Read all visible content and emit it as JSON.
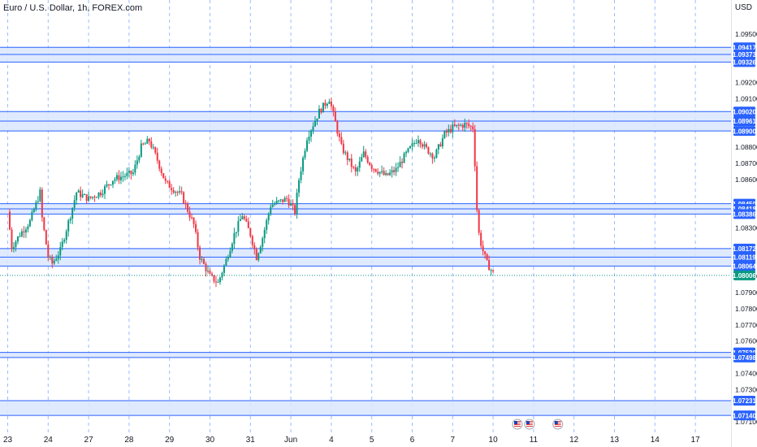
{
  "header": {
    "title": "Euro / U.S. Dollar, 1h, FOREX.com",
    "currency": "USD"
  },
  "colors": {
    "up": "#089981",
    "down": "#f23645",
    "zone_fill": "#dbe6ff",
    "zone_line": "#2962ff",
    "grid_dash": "#7aa6ff",
    "label_bg": "#2962ff",
    "price_label_bg": "#089981"
  },
  "chart_data": {
    "type": "candlestick",
    "title": "Euro / U.S. Dollar, 1h, FOREX.com",
    "ylim": [
      1.07025,
      1.0971
    ],
    "y_ticks": [
      "1.09500",
      "1.09200",
      "1.09100",
      "1.08800",
      "1.08700",
      "1.08600",
      "1.08300",
      "1.08000",
      "1.07900",
      "1.07800",
      "1.07700",
      "1.07600",
      "1.07400",
      "1.07300",
      "1.07100"
    ],
    "x_ticks": [
      "23",
      "24",
      "27",
      "28",
      "29",
      "30",
      "31",
      "Jun",
      "4",
      "5",
      "6",
      "7",
      "10",
      "11",
      "12",
      "13",
      "14",
      "17"
    ],
    "price_levels": [
      "1.09417",
      "1.09373",
      "1.09326",
      "1.09020",
      "1.08961",
      "1.08900",
      "1.08450",
      "1.08418",
      "1.08386",
      "1.08172",
      "1.08119",
      "1.08064",
      "1.07530",
      "1.07498",
      "1.07231",
      "1.07140"
    ],
    "zones": [
      {
        "from": 1.09326,
        "to": 1.09417
      },
      {
        "from": 1.089,
        "to": 1.0902
      },
      {
        "from": 1.08386,
        "to": 1.0845
      },
      {
        "from": 1.08064,
        "to": 1.08172
      },
      {
        "from": 1.07498,
        "to": 1.0753
      },
      {
        "from": 1.0714,
        "to": 1.07231
      }
    ],
    "last_price": "1.08006",
    "last_price_value": 1.08006,
    "price_path": [
      {
        "d": 0.0,
        "p": 1.084
      },
      {
        "d": 0.1,
        "p": 1.0818
      },
      {
        "d": 0.3,
        "p": 1.0826
      },
      {
        "d": 0.55,
        "p": 1.0834
      },
      {
        "d": 0.8,
        "p": 1.0852
      },
      {
        "d": 0.85,
        "p": 1.0836
      },
      {
        "d": 1.0,
        "p": 1.0812
      },
      {
        "d": 1.1,
        "p": 1.0808
      },
      {
        "d": 1.3,
        "p": 1.0816
      },
      {
        "d": 1.55,
        "p": 1.0838
      },
      {
        "d": 1.7,
        "p": 1.0852
      },
      {
        "d": 2.0,
        "p": 1.0848
      },
      {
        "d": 2.3,
        "p": 1.0852
      },
      {
        "d": 2.6,
        "p": 1.086
      },
      {
        "d": 3.1,
        "p": 1.0864
      },
      {
        "d": 3.3,
        "p": 1.088
      },
      {
        "d": 3.5,
        "p": 1.0884
      },
      {
        "d": 3.7,
        "p": 1.0872
      },
      {
        "d": 3.9,
        "p": 1.0858
      },
      {
        "d": 4.3,
        "p": 1.085
      },
      {
        "d": 4.6,
        "p": 1.0832
      },
      {
        "d": 4.75,
        "p": 1.0812
      },
      {
        "d": 5.0,
        "p": 1.08
      },
      {
        "d": 5.2,
        "p": 1.0796
      },
      {
        "d": 5.4,
        "p": 1.081
      },
      {
        "d": 5.6,
        "p": 1.0826
      },
      {
        "d": 5.8,
        "p": 1.0838
      },
      {
        "d": 6.0,
        "p": 1.0826
      },
      {
        "d": 6.15,
        "p": 1.0812
      },
      {
        "d": 6.3,
        "p": 1.0824
      },
      {
        "d": 6.5,
        "p": 1.0844
      },
      {
        "d": 6.7,
        "p": 1.0846
      },
      {
        "d": 6.9,
        "p": 1.0848
      },
      {
        "d": 7.1,
        "p": 1.084
      },
      {
        "d": 7.2,
        "p": 1.086
      },
      {
        "d": 7.4,
        "p": 1.0886
      },
      {
        "d": 7.7,
        "p": 1.0902
      },
      {
        "d": 7.95,
        "p": 1.091
      },
      {
        "d": 8.25,
        "p": 1.088
      },
      {
        "d": 8.6,
        "p": 1.0864
      },
      {
        "d": 8.8,
        "p": 1.0876
      },
      {
        "d": 9.0,
        "p": 1.0868
      },
      {
        "d": 9.35,
        "p": 1.0862
      },
      {
        "d": 9.6,
        "p": 1.0866
      },
      {
        "d": 9.8,
        "p": 1.0874
      },
      {
        "d": 10.15,
        "p": 1.0886
      },
      {
        "d": 10.3,
        "p": 1.088
      },
      {
        "d": 10.55,
        "p": 1.0874
      },
      {
        "d": 10.8,
        "p": 1.0888
      },
      {
        "d": 11.0,
        "p": 1.0892
      },
      {
        "d": 11.3,
        "p": 1.0894
      },
      {
        "d": 11.5,
        "p": 1.0892
      },
      {
        "d": 11.55,
        "p": 1.087
      },
      {
        "d": 11.62,
        "p": 1.083
      },
      {
        "d": 11.72,
        "p": 1.0818
      },
      {
        "d": 11.85,
        "p": 1.0808
      },
      {
        "d": 12.0,
        "p": 1.0802
      }
    ],
    "event_markers": [
      12.6,
      12.9,
      13.6
    ]
  }
}
